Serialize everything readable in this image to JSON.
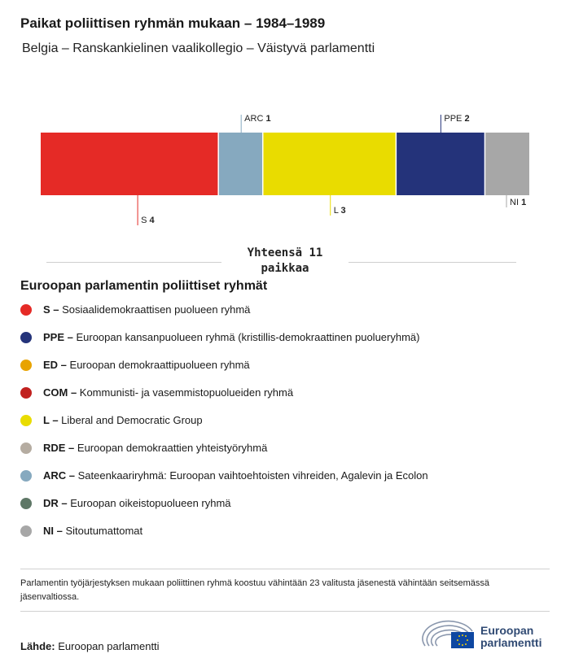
{
  "header": {
    "title": "Paikat poliittisen ryhmän mukaan – 1984–1989",
    "subtitle": "Belgia – Ranskankielinen vaalikollegio – Väistyvä parlamentti"
  },
  "chart_data": {
    "type": "bar",
    "stacked": true,
    "orientation": "horizontal",
    "categories": [
      "S",
      "ARC",
      "L",
      "PPE",
      "NI"
    ],
    "values": [
      4,
      1,
      3,
      2,
      1
    ],
    "colors": [
      "#e52a26",
      "#86a9bf",
      "#e9dc00",
      "#24337a",
      "#a7a7a7"
    ],
    "label_positions": [
      "below",
      "above",
      "below",
      "above",
      "below"
    ],
    "total_label": "Yhteensä 11 paikkaa"
  },
  "legend": {
    "title": "Euroopan parlamentin poliittiset ryhmät",
    "items": [
      {
        "abbr": "S –",
        "desc": "Sosiaalidemokraattisen puolueen ryhmä",
        "color": "#e52a26"
      },
      {
        "abbr": "PPE –",
        "desc": "Euroopan kansanpuolueen ryhmä (kristillis-demokraattinen puolueryhmä)",
        "color": "#24337a"
      },
      {
        "abbr": "ED –",
        "desc": "Euroopan demokraattipuolueen ryhmä",
        "color": "#e8a300"
      },
      {
        "abbr": "COM –",
        "desc": "Kommunisti- ja vasemmistopuolueiden ryhmä",
        "color": "#c1211f"
      },
      {
        "abbr": "L –",
        "desc": "Liberal and Democratic Group",
        "color": "#e9dc00"
      },
      {
        "abbr": "RDE –",
        "desc": "Euroopan demokraattien yhteistyöryhmä",
        "color": "#b5aca1"
      },
      {
        "abbr": "ARC –",
        "desc": "Sateenkaariryhmä: Euroopan vaihtoehtoisten vihreiden, Agalevin ja Ecolon",
        "color": "#86a9bf"
      },
      {
        "abbr": "DR –",
        "desc": "Euroopan oikeistopuolueen ryhmä",
        "color": "#5e7766"
      },
      {
        "abbr": "NI –",
        "desc": "Sitoutumattomat",
        "color": "#a7a7a7"
      }
    ]
  },
  "footnote": "Parlamentin työjärjestyksen mukaan poliittinen ryhmä koostuu vähintään 23 valitusta jäsenestä vähintään seitsemässä jäsenvaltiossa.",
  "source": {
    "label": "Lähde:",
    "value": "Euroopan parlamentti"
  },
  "logo": {
    "line1": "Euroopan",
    "line2": "parlamentti"
  }
}
